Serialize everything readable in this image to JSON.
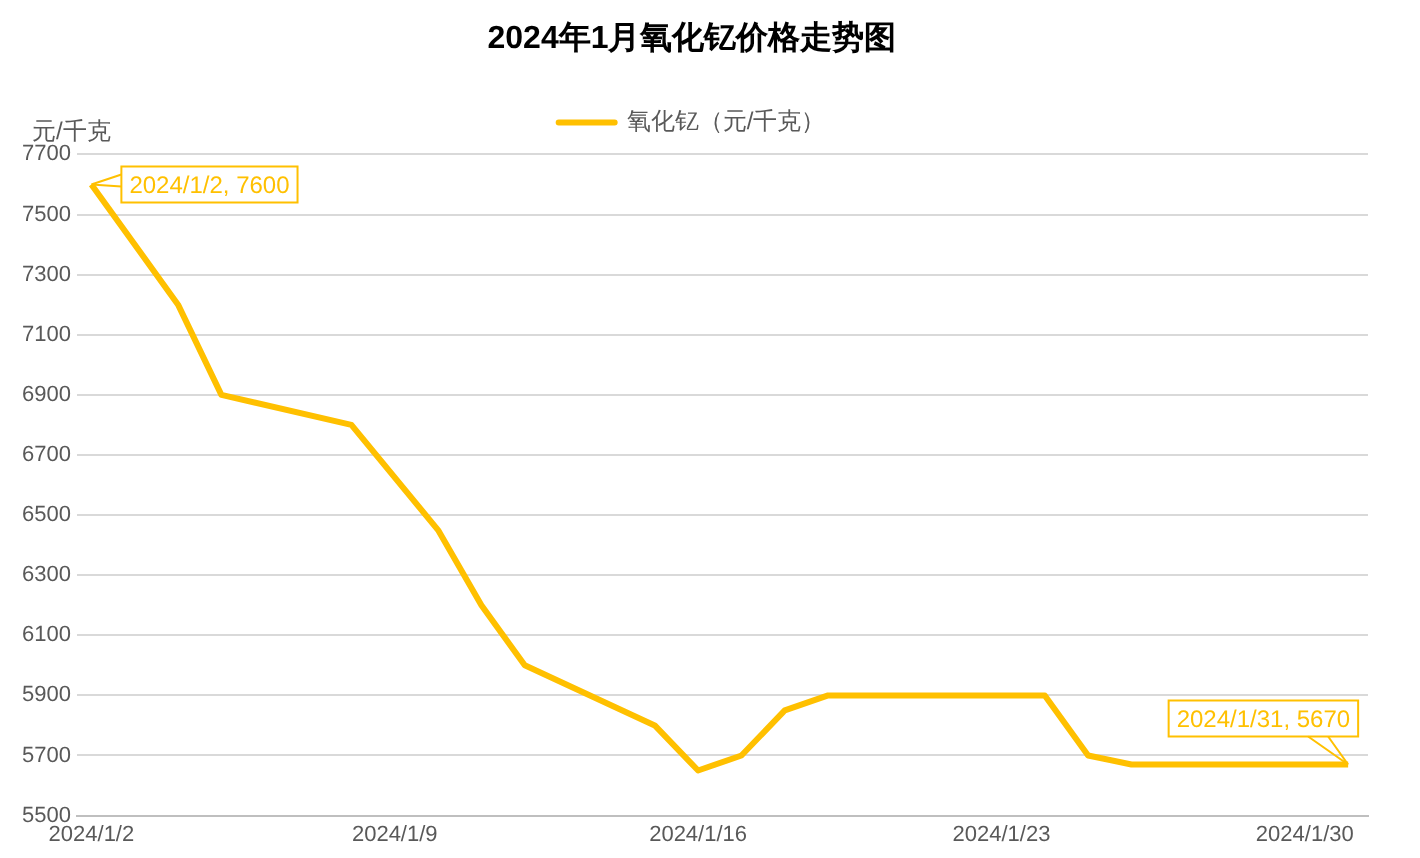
{
  "chart_data": {
    "type": "line",
    "title": "2024年1月氧化钇价格走势图",
    "ylabel": "元/千克",
    "x": [
      "2024-01-02",
      "2024-01-04",
      "2024-01-05",
      "2024-01-08",
      "2024-01-10",
      "2024-01-11",
      "2024-01-12",
      "2024-01-15",
      "2024-01-16",
      "2024-01-17",
      "2024-01-18",
      "2024-01-19",
      "2024-01-22",
      "2024-01-23",
      "2024-01-24",
      "2024-01-25",
      "2024-01-26",
      "2024-01-29",
      "2024-01-30",
      "2024-01-31"
    ],
    "series": [
      {
        "name": "氧化钇（元/千克）",
        "color": "#ffc000",
        "values": [
          7600,
          7200,
          6900,
          6800,
          6450,
          6200,
          6000,
          5800,
          5650,
          5700,
          5850,
          5900,
          5900,
          5900,
          5900,
          5700,
          5670,
          5670,
          5670,
          5670
        ]
      }
    ],
    "xlim": [
      "2024-01-01T16:00",
      "2024-01-31T11:00"
    ],
    "xticks": [
      {
        "value": "2024-01-02",
        "label": "2024/1/2"
      },
      {
        "value": "2024-01-09",
        "label": "2024/1/9"
      },
      {
        "value": "2024-01-16",
        "label": "2024/1/16"
      },
      {
        "value": "2024-01-23",
        "label": "2024/1/23"
      },
      {
        "value": "2024-01-30",
        "label": "2024/1/30"
      }
    ],
    "ylim": [
      5500,
      7700
    ],
    "yticks": [
      5500,
      5700,
      5900,
      6100,
      6300,
      6500,
      6700,
      6900,
      7100,
      7300,
      7500,
      7700
    ],
    "grid": "y",
    "legend": "top",
    "marker": "none",
    "line_style": "solid",
    "annotations": [
      {
        "text": "2024/1/2, 7600",
        "x": "2024-01-02",
        "y": 7600
      },
      {
        "text": "2024/1/31, 5670",
        "x": "2024-01-31",
        "y": 5670
      }
    ]
  }
}
